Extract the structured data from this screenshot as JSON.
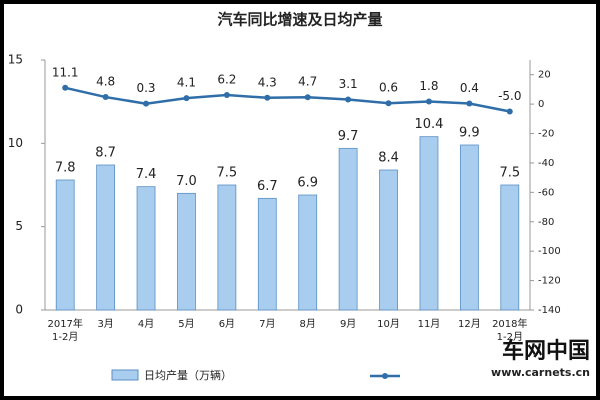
{
  "chart_data": {
    "type": "bar-line",
    "title": "汽车同比增速及日均产量",
    "categories": [
      "2017年\n1-2月",
      "3月",
      "4月",
      "5月",
      "6月",
      "7月",
      "8月",
      "9月",
      "10月",
      "11月",
      "12月",
      "2018年\n1-2月"
    ],
    "series": [
      {
        "name": "日均产量（万辆）",
        "type": "bar",
        "color": "#a9cdee",
        "values": [
          7.8,
          8.7,
          7.4,
          7.0,
          7.5,
          6.7,
          6.9,
          9.7,
          8.4,
          10.4,
          9.9,
          7.5
        ],
        "value_labels": [
          "7.8",
          "8.7",
          "7.4",
          "7.0",
          "7.5",
          "6.7",
          "6.9",
          "9.7",
          "8.4",
          "10.4",
          "9.9",
          "7.5"
        ]
      },
      {
        "type": "line",
        "axis": "y2",
        "color": "#2f6ea8",
        "values": [
          11.1,
          4.8,
          0.3,
          4.1,
          6.2,
          4.3,
          4.7,
          3.1,
          0.6,
          1.8,
          0.4,
          -5.0
        ],
        "value_labels": [
          "11.1",
          "4.8",
          "0.3",
          "4.1",
          "6.2",
          "4.3",
          "4.7",
          "3.1",
          "0.6",
          "1.8",
          "0.4",
          "-5.0"
        ]
      }
    ],
    "ylim": [
      0,
      15
    ],
    "yticks": [
      0,
      5,
      10,
      15
    ],
    "y2lim": [
      -140,
      30
    ],
    "y2ticks": [
      -140,
      -120,
      -100,
      -80,
      -60,
      -40,
      -20,
      0,
      20
    ],
    "watermark": {
      "brand": "车网中国",
      "url": "www.carnets.cn"
    }
  }
}
